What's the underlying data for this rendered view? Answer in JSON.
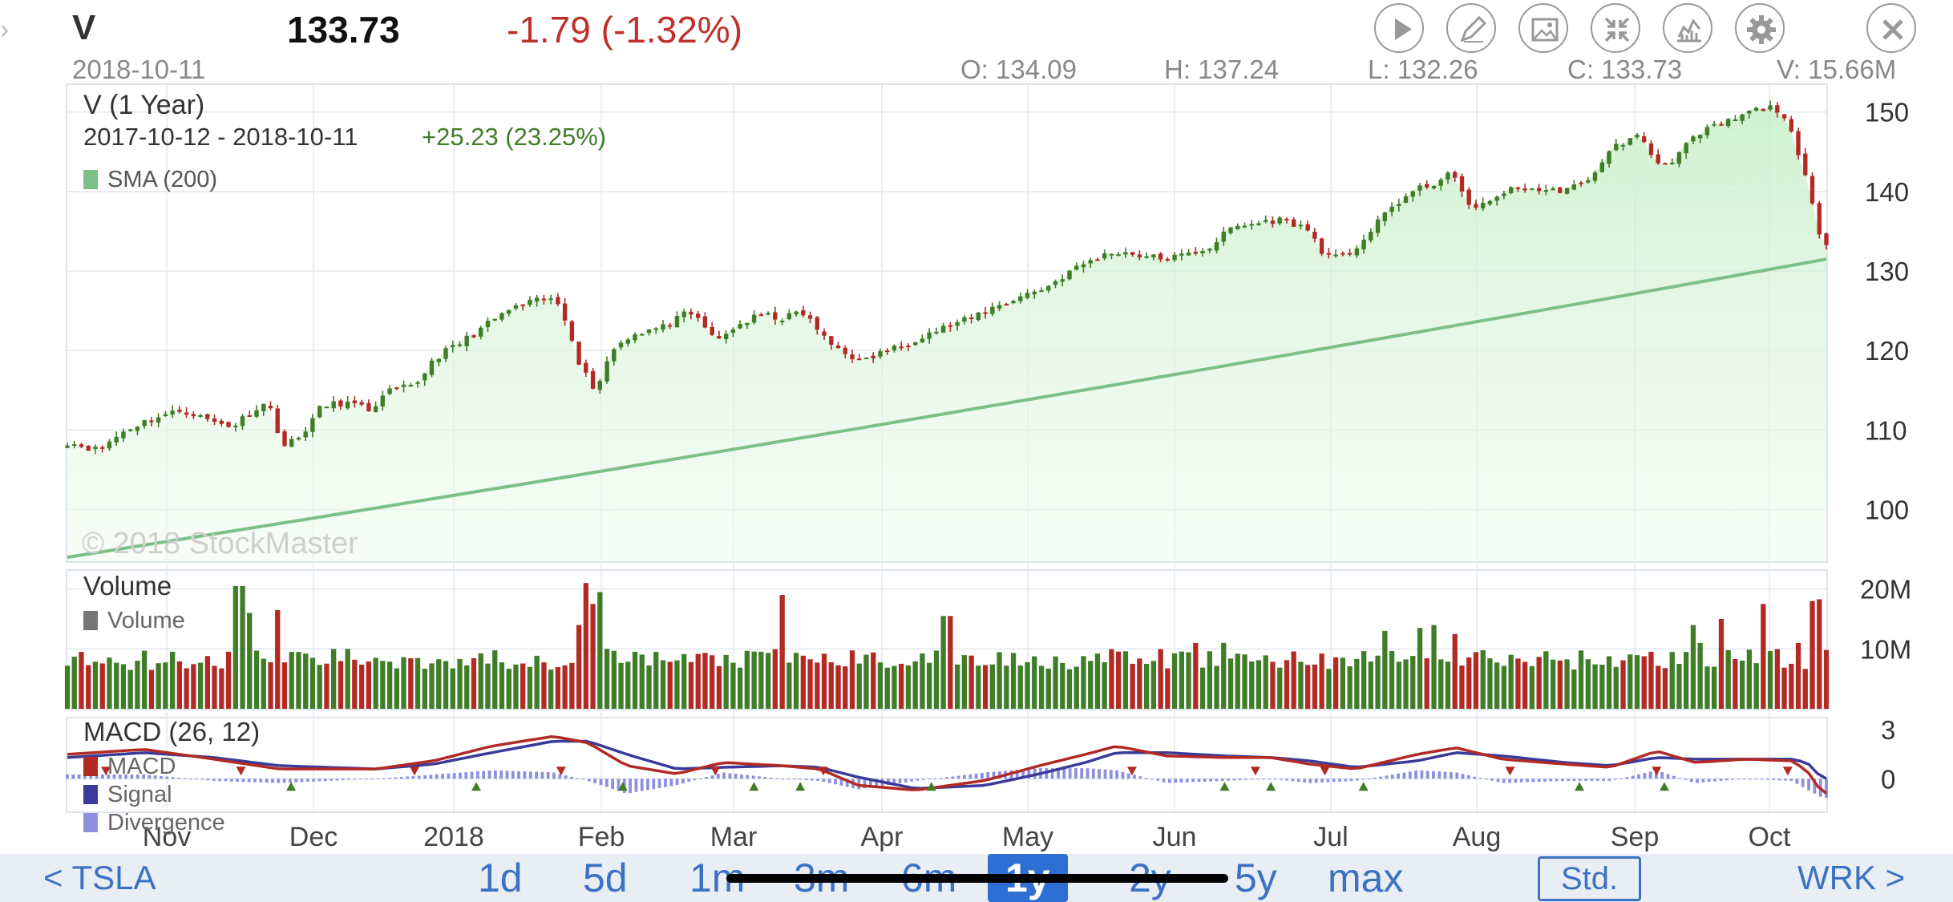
{
  "header": {
    "symbol": "V",
    "price": "133.73",
    "change": "-1.79 (-1.32%)",
    "date": "2018-10-11",
    "open": "O: 134.09",
    "high": "H: 137.24",
    "low": "L: 132.26",
    "close": "C: 133.73",
    "volume": "V: 15.66M"
  },
  "toolbar_icons": [
    "play-icon",
    "pencil-icon",
    "image-icon",
    "compress-icon",
    "chart-style-icon",
    "gear-icon",
    "close-icon"
  ],
  "main_panel": {
    "title": "V (1 Year)",
    "range": "2017-10-12 - 2018-10-11",
    "range_change": "+25.23 (23.25%)",
    "legend": "SMA (200)",
    "watermark": "© 2018 StockMaster"
  },
  "volume_panel": {
    "title": "Volume",
    "legend": "Volume"
  },
  "macd_panel": {
    "title": "MACD (26, 12)",
    "legend": [
      "MACD",
      "Signal",
      "Divergence"
    ]
  },
  "colors": {
    "up": "#3f7d28",
    "down": "#b22a24",
    "sma": "#7cc089",
    "macd": "#b22a24",
    "signal": "#3a3a9a",
    "divergence": "#8f8fe0",
    "accent": "#3b72c4"
  },
  "nav": {
    "prev": "< TSLA",
    "next": "WRK >",
    "ranges": [
      "1d",
      "5d",
      "1m",
      "3m",
      "6m",
      "1y",
      "2y",
      "5y",
      "max"
    ],
    "selected": "1y",
    "mode": "Std."
  },
  "chart_data": {
    "type": "candlestick",
    "x_labels": [
      "Nov",
      "Dec",
      "2018",
      "Feb",
      "Mar",
      "Apr",
      "May",
      "Jun",
      "Jul",
      "Aug",
      "Sep",
      "Oct"
    ],
    "price_ticks": [
      100,
      110,
      120,
      130,
      140,
      150
    ],
    "price_range": [
      93.5,
      153
    ],
    "price_path": [
      [
        0,
        108.5
      ],
      [
        8,
        107.5
      ],
      [
        15,
        110
      ],
      [
        22,
        111.5
      ],
      [
        30,
        112.5
      ],
      [
        38,
        111
      ],
      [
        43,
        110.5
      ],
      [
        48,
        112.5
      ],
      [
        52,
        113.5
      ],
      [
        56,
        108
      ],
      [
        60,
        109
      ],
      [
        66,
        113
      ],
      [
        72,
        113.5
      ],
      [
        78,
        112.5
      ],
      [
        84,
        115
      ],
      [
        90,
        115.5
      ],
      [
        95,
        119
      ],
      [
        102,
        121
      ],
      [
        108,
        123
      ],
      [
        114,
        125
      ],
      [
        120,
        126
      ],
      [
        124,
        126.5
      ],
      [
        127,
        126
      ],
      [
        130,
        123
      ],
      [
        133,
        118
      ],
      [
        137,
        115
      ],
      [
        141,
        120
      ],
      [
        146,
        122
      ],
      [
        150,
        122.5
      ],
      [
        155,
        123
      ],
      [
        160,
        124.5
      ],
      [
        164,
        124
      ],
      [
        168,
        121
      ],
      [
        173,
        123
      ],
      [
        180,
        124.5
      ],
      [
        186,
        124
      ],
      [
        190,
        125
      ],
      [
        194,
        123
      ],
      [
        197,
        121
      ],
      [
        201,
        120
      ],
      [
        206,
        118.5
      ],
      [
        212,
        120
      ],
      [
        216,
        120.5
      ],
      [
        222,
        122
      ],
      [
        228,
        123
      ],
      [
        234,
        124
      ],
      [
        238,
        125
      ],
      [
        243,
        126
      ],
      [
        248,
        127
      ],
      [
        254,
        128
      ],
      [
        260,
        130
      ],
      [
        266,
        131.5
      ],
      [
        272,
        132.5
      ],
      [
        278,
        132
      ],
      [
        284,
        131.5
      ],
      [
        290,
        132
      ],
      [
        296,
        133
      ],
      [
        302,
        135.5
      ],
      [
        308,
        136
      ],
      [
        314,
        136.5
      ],
      [
        318,
        136
      ],
      [
        322,
        135
      ],
      [
        326,
        132
      ],
      [
        330,
        131.5
      ],
      [
        334,
        133
      ],
      [
        338,
        135
      ],
      [
        343,
        138
      ],
      [
        349,
        140
      ],
      [
        354,
        141
      ],
      [
        358,
        142
      ],
      [
        361,
        141
      ],
      [
        364,
        137.5
      ],
      [
        368,
        138.5
      ],
      [
        372,
        140
      ],
      [
        378,
        140.5
      ],
      [
        384,
        140
      ],
      [
        390,
        140.5
      ],
      [
        394,
        141
      ],
      [
        397,
        143.5
      ],
      [
        402,
        146
      ],
      [
        408,
        147
      ],
      [
        412,
        143.5
      ],
      [
        416,
        144
      ],
      [
        420,
        146
      ],
      [
        426,
        148
      ],
      [
        432,
        149
      ],
      [
        436,
        150
      ],
      [
        440,
        150.5
      ],
      [
        443,
        150.5
      ],
      [
        445,
        149.5
      ],
      [
        447,
        147
      ],
      [
        449,
        144
      ],
      [
        451,
        141
      ],
      [
        453,
        137
      ],
      [
        455,
        133.7
      ]
    ],
    "sma200": {
      "name": "SMA (200)",
      "start": 94,
      "end": 131.5
    },
    "candles": {
      "total": 252
    },
    "volume": {
      "ticks": [
        "10M",
        "20M"
      ],
      "max": 22.5,
      "spikes": [
        [
          43,
          20.5
        ],
        [
          45,
          20.5
        ],
        [
          48,
          16
        ],
        [
          55,
          16.5
        ],
        [
          58,
          9.5
        ],
        [
          72,
          10
        ],
        [
          132,
          14
        ],
        [
          134,
          21
        ],
        [
          136,
          17.5
        ],
        [
          138,
          19.5
        ],
        [
          140,
          10
        ],
        [
          186,
          19
        ],
        [
          228,
          15.5
        ],
        [
          292,
          11
        ],
        [
          300,
          11
        ],
        [
          342,
          13
        ],
        [
          350,
          13.5
        ],
        [
          354,
          14
        ],
        [
          360,
          12.5
        ],
        [
          421,
          14
        ],
        [
          423,
          11
        ],
        [
          428,
          15
        ],
        [
          440,
          17.5
        ],
        [
          448,
          11
        ],
        [
          453,
          18
        ],
        [
          455,
          18.3
        ]
      ]
    },
    "macd": {
      "ticks": [
        "0",
        "3"
      ],
      "range": [
        -1.9,
        3.6
      ],
      "macd_path": [
        [
          0,
          1.5
        ],
        [
          20,
          1.8
        ],
        [
          38,
          1.2
        ],
        [
          55,
          0.6
        ],
        [
          80,
          0.6
        ],
        [
          95,
          1.1
        ],
        [
          110,
          2.0
        ],
        [
          126,
          2.6
        ],
        [
          135,
          2.2
        ],
        [
          145,
          0.8
        ],
        [
          158,
          0.3
        ],
        [
          170,
          1.0
        ],
        [
          185,
          0.8
        ],
        [
          195,
          0.6
        ],
        [
          205,
          -0.4
        ],
        [
          220,
          -0.7
        ],
        [
          238,
          -0.1
        ],
        [
          252,
          0.8
        ],
        [
          264,
          1.5
        ],
        [
          272,
          2.0
        ],
        [
          285,
          1.4
        ],
        [
          300,
          1.3
        ],
        [
          312,
          1.3
        ],
        [
          322,
          0.9
        ],
        [
          334,
          0.6
        ],
        [
          350,
          1.5
        ],
        [
          360,
          1.9
        ],
        [
          372,
          1.2
        ],
        [
          388,
          0.9
        ],
        [
          400,
          0.7
        ],
        [
          412,
          1.7
        ],
        [
          422,
          1.0
        ],
        [
          435,
          1.2
        ],
        [
          447,
          1.1
        ],
        [
          451,
          0.5
        ],
        [
          455,
          -0.9
        ]
      ],
      "signal_path": [
        [
          0,
          1.3
        ],
        [
          20,
          1.6
        ],
        [
          38,
          1.3
        ],
        [
          55,
          0.8
        ],
        [
          80,
          0.6
        ],
        [
          95,
          0.9
        ],
        [
          110,
          1.6
        ],
        [
          126,
          2.3
        ],
        [
          135,
          2.3
        ],
        [
          145,
          1.5
        ],
        [
          158,
          0.6
        ],
        [
          170,
          0.7
        ],
        [
          185,
          0.8
        ],
        [
          195,
          0.7
        ],
        [
          205,
          0.1
        ],
        [
          220,
          -0.6
        ],
        [
          238,
          -0.4
        ],
        [
          252,
          0.3
        ],
        [
          264,
          1.0
        ],
        [
          272,
          1.6
        ],
        [
          285,
          1.6
        ],
        [
          300,
          1.4
        ],
        [
          312,
          1.3
        ],
        [
          322,
          1.1
        ],
        [
          334,
          0.7
        ],
        [
          350,
          1.1
        ],
        [
          360,
          1.6
        ],
        [
          372,
          1.4
        ],
        [
          388,
          1.0
        ],
        [
          400,
          0.8
        ],
        [
          412,
          1.3
        ],
        [
          422,
          1.2
        ],
        [
          435,
          1.2
        ],
        [
          447,
          1.2
        ],
        [
          451,
          1.0
        ],
        [
          455,
          0.0
        ]
      ],
      "up_markers": [
        58,
        106,
        144,
        178,
        190,
        224,
        300,
        312,
        336,
        392,
        414
      ],
      "down_markers": [
        10,
        45,
        90,
        128,
        168,
        196,
        276,
        308,
        326,
        374,
        412,
        446
      ]
    }
  }
}
